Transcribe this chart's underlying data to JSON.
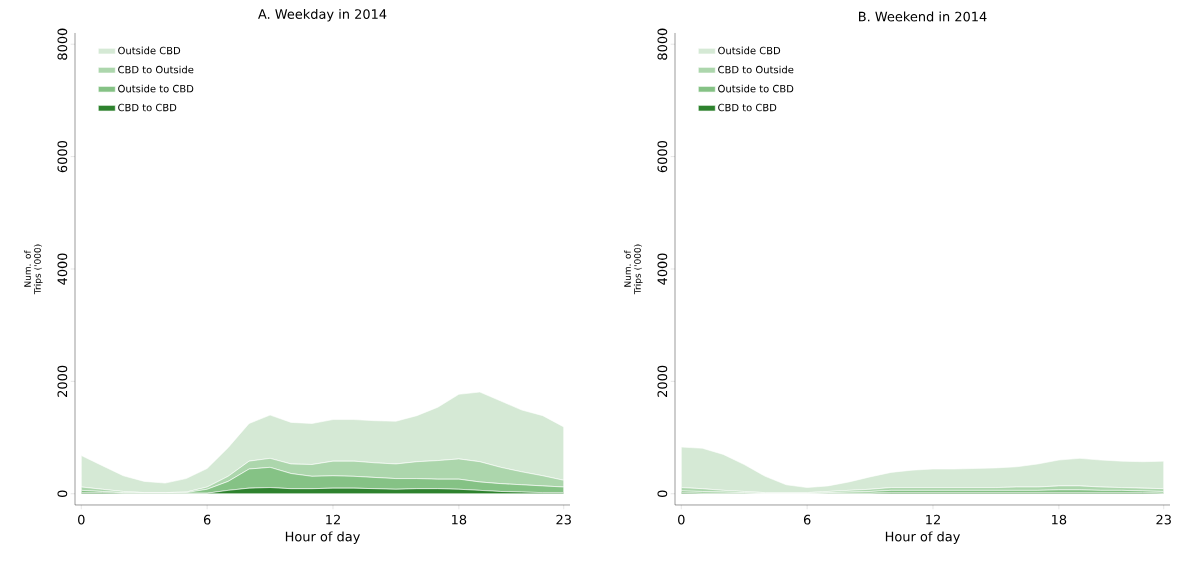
{
  "chart_data": [
    {
      "type": "area",
      "stacked": true,
      "title": "A. Weekday in 2014",
      "xlabel": "Hour of day",
      "ylabel": "Num. of Trips ('000)",
      "legend": "top left",
      "x": [
        0,
        1,
        2,
        3,
        4,
        5,
        6,
        7,
        8,
        9,
        10,
        11,
        12,
        13,
        14,
        15,
        16,
        17,
        18,
        19,
        20,
        21,
        22,
        23
      ],
      "xlim": [
        -0.3,
        23.3
      ],
      "xticks": [
        0,
        6,
        12,
        18,
        23
      ],
      "ylim": [
        -200,
        8200
      ],
      "yticks": [
        0,
        2000,
        4000,
        6000,
        8000
      ],
      "series": [
        {
          "name": "CBD to CBD",
          "color": "#2e822e",
          "values": [
            20,
            20,
            10,
            10,
            10,
            10,
            10,
            60,
            100,
            110,
            90,
            90,
            100,
            100,
            90,
            80,
            90,
            90,
            80,
            60,
            40,
            30,
            20,
            20
          ]
        },
        {
          "name": "Outside to CBD",
          "color": "#85c285",
          "values": [
            40,
            20,
            10,
            0,
            0,
            10,
            70,
            160,
            340,
            360,
            270,
            220,
            220,
            210,
            200,
            190,
            180,
            170,
            180,
            150,
            140,
            130,
            120,
            100
          ]
        },
        {
          "name": "CBD to Outside",
          "color": "#acd6ac",
          "values": [
            60,
            40,
            20,
            10,
            10,
            10,
            40,
            90,
            140,
            160,
            170,
            210,
            260,
            270,
            260,
            260,
            300,
            330,
            360,
            360,
            290,
            230,
            180,
            120
          ]
        },
        {
          "name": "Outside CBD",
          "color": "#d5e9d5",
          "values": [
            560,
            420,
            280,
            200,
            170,
            240,
            330,
            510,
            670,
            770,
            740,
            730,
            740,
            740,
            750,
            760,
            820,
            950,
            1150,
            1240,
            1180,
            1100,
            1070,
            950
          ]
        }
      ]
    },
    {
      "type": "area",
      "stacked": true,
      "title": "B. Weekend in 2014",
      "xlabel": "Hour of day",
      "ylabel": "Num. of Trips ('000)",
      "legend": "top left",
      "x": [
        0,
        1,
        2,
        3,
        4,
        5,
        6,
        7,
        8,
        9,
        10,
        11,
        12,
        13,
        14,
        15,
        16,
        17,
        18,
        19,
        20,
        21,
        22,
        23
      ],
      "xlim": [
        -0.3,
        23.3
      ],
      "xticks": [
        0,
        6,
        12,
        18,
        23
      ],
      "ylim": [
        -200,
        8200
      ],
      "yticks": [
        0,
        2000,
        4000,
        6000,
        8000
      ],
      "series": [
        {
          "name": "CBD to CBD",
          "color": "#2e822e",
          "values": [
            20,
            10,
            10,
            10,
            0,
            0,
            0,
            10,
            10,
            10,
            20,
            20,
            20,
            20,
            20,
            20,
            20,
            20,
            20,
            20,
            20,
            20,
            20,
            10
          ]
        },
        {
          "name": "Outside to CBD",
          "color": "#85c285",
          "values": [
            30,
            30,
            20,
            10,
            10,
            10,
            10,
            10,
            20,
            30,
            40,
            40,
            40,
            40,
            40,
            40,
            40,
            40,
            50,
            50,
            40,
            40,
            30,
            30
          ]
        },
        {
          "name": "CBD to Outside",
          "color": "#acd6ac",
          "values": [
            60,
            50,
            30,
            20,
            10,
            10,
            10,
            20,
            30,
            40,
            50,
            50,
            50,
            50,
            50,
            50,
            60,
            60,
            70,
            70,
            60,
            50,
            50,
            50
          ]
        },
        {
          "name": "Outside CBD",
          "color": "#d5e9d5",
          "values": [
            720,
            720,
            640,
            480,
            290,
            140,
            90,
            100,
            150,
            220,
            270,
            310,
            330,
            330,
            340,
            350,
            360,
            410,
            460,
            490,
            480,
            470,
            470,
            490
          ]
        }
      ]
    }
  ]
}
